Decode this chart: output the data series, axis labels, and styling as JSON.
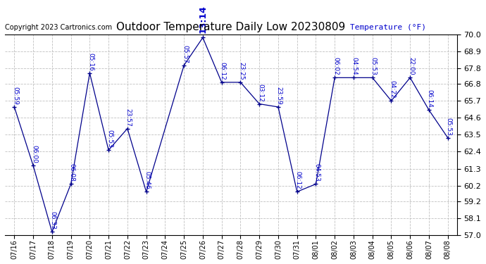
{
  "title": "Outdoor Temperature Daily Low 20230809",
  "copyright": "Copyright 2023 Cartronics.com",
  "ylabel": "Temperature (°F)",
  "background_color": "#ffffff",
  "line_color": "#00008B",
  "text_color": "#0000CC",
  "grid_color": "#C0C0C0",
  "ylim": [
    57.0,
    70.0
  ],
  "yticks": [
    57.0,
    58.1,
    59.2,
    60.2,
    61.3,
    62.4,
    63.5,
    64.6,
    65.7,
    66.8,
    67.8,
    68.9,
    70.0
  ],
  "dates": [
    "07/16",
    "07/17",
    "07/18",
    "07/19",
    "07/20",
    "07/21",
    "07/22",
    "07/23",
    "07/24",
    "07/25",
    "07/26",
    "07/27",
    "07/28",
    "07/29",
    "07/30",
    "07/31",
    "08/01",
    "08/02",
    "08/03",
    "08/04",
    "08/05",
    "08/06",
    "08/07",
    "08/08"
  ],
  "temps": [
    65.3,
    61.5,
    57.2,
    60.3,
    67.5,
    62.5,
    63.9,
    59.8,
    null,
    68.0,
    69.8,
    66.9,
    66.9,
    65.5,
    65.3,
    59.8,
    60.3,
    67.2,
    67.2,
    67.2,
    65.7,
    67.2,
    65.1,
    63.3
  ],
  "point_labels": [
    "05:59",
    "06:00",
    "06:33",
    "06:08",
    "05:16",
    "05:53",
    "23:57",
    "05:46",
    "",
    "05:57",
    "13:14",
    "06:12",
    "23:25",
    "03:12",
    "23:59",
    "06:12",
    "04:53",
    "06:02",
    "04:54",
    "05:53",
    "04:22",
    "22:00",
    "06:14",
    "05:53"
  ],
  "label_rotations": [
    270,
    270,
    270,
    270,
    270,
    270,
    270,
    270,
    270,
    270,
    90,
    270,
    270,
    270,
    270,
    270,
    270,
    270,
    270,
    270,
    270,
    270,
    270,
    270
  ],
  "peak_idx": 10,
  "figsize": [
    6.9,
    3.75
  ],
  "dpi": 100
}
